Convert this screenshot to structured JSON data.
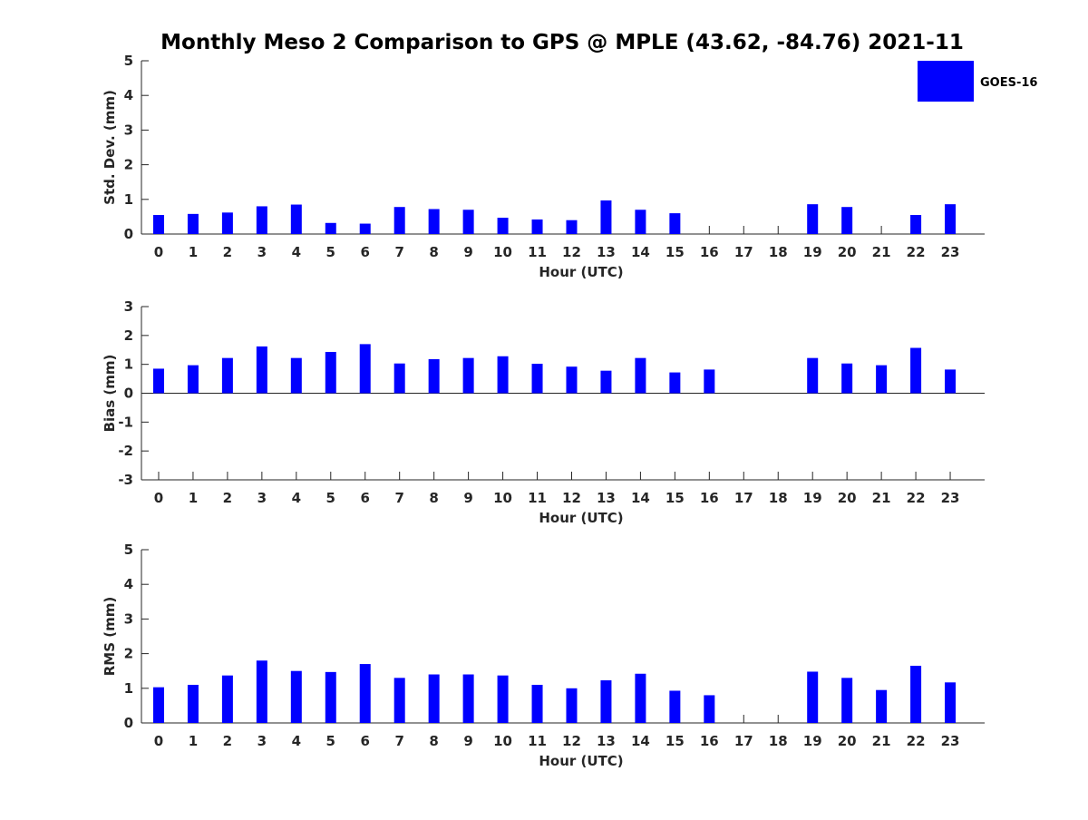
{
  "title": "Monthly Meso 2 Comparison to GPS @ MPLE (43.62, -84.76) 2021-11",
  "legend": {
    "label": "GOES-16",
    "color": "#0000ff"
  },
  "chart_data": [
    {
      "type": "bar",
      "ylabel": "Std. Dev. (mm)",
      "xlabel": "Hour (UTC)",
      "categories": [
        "0",
        "1",
        "2",
        "3",
        "4",
        "5",
        "6",
        "7",
        "8",
        "9",
        "10",
        "11",
        "12",
        "13",
        "14",
        "15",
        "16",
        "17",
        "18",
        "19",
        "20",
        "21",
        "22",
        "23"
      ],
      "ylim": [
        0,
        5
      ],
      "yticks": [
        "0",
        "1",
        "2",
        "3",
        "4",
        "5"
      ],
      "series": [
        {
          "name": "GOES-16",
          "values": [
            0.55,
            0.58,
            0.62,
            0.8,
            0.85,
            0.32,
            0.3,
            0.78,
            0.72,
            0.7,
            0.47,
            0.42,
            0.4,
            0.97,
            0.7,
            0.6,
            null,
            null,
            null,
            0.86,
            0.78,
            null,
            0.55,
            0.86
          ]
        }
      ]
    },
    {
      "type": "bar",
      "ylabel": "Bias (mm)",
      "xlabel": "Hour (UTC)",
      "categories": [
        "0",
        "1",
        "2",
        "3",
        "4",
        "5",
        "6",
        "7",
        "8",
        "9",
        "10",
        "11",
        "12",
        "13",
        "14",
        "15",
        "16",
        "17",
        "18",
        "19",
        "20",
        "21",
        "22",
        "23"
      ],
      "ylim": [
        -3,
        3
      ],
      "yticks": [
        "-3",
        "-2",
        "-1",
        "0",
        "1",
        "2",
        "3"
      ],
      "series": [
        {
          "name": "GOES-16",
          "values": [
            0.85,
            0.97,
            1.22,
            1.62,
            1.22,
            1.43,
            1.7,
            1.03,
            1.18,
            1.22,
            1.28,
            1.02,
            0.92,
            0.78,
            1.22,
            0.72,
            0.82,
            null,
            null,
            1.22,
            1.03,
            0.97,
            1.57,
            0.82
          ]
        }
      ]
    },
    {
      "type": "bar",
      "ylabel": "RMS (mm)",
      "xlabel": "Hour (UTC)",
      "categories": [
        "0",
        "1",
        "2",
        "3",
        "4",
        "5",
        "6",
        "7",
        "8",
        "9",
        "10",
        "11",
        "12",
        "13",
        "14",
        "15",
        "16",
        "17",
        "18",
        "19",
        "20",
        "21",
        "22",
        "23"
      ],
      "ylim": [
        0,
        5
      ],
      "yticks": [
        "0",
        "1",
        "2",
        "3",
        "4",
        "5"
      ],
      "series": [
        {
          "name": "GOES-16",
          "values": [
            1.03,
            1.1,
            1.37,
            1.8,
            1.5,
            1.47,
            1.7,
            1.3,
            1.4,
            1.4,
            1.37,
            1.1,
            1.0,
            1.23,
            1.42,
            0.93,
            0.8,
            null,
            null,
            1.48,
            1.3,
            0.95,
            1.65,
            1.17
          ]
        }
      ]
    }
  ]
}
